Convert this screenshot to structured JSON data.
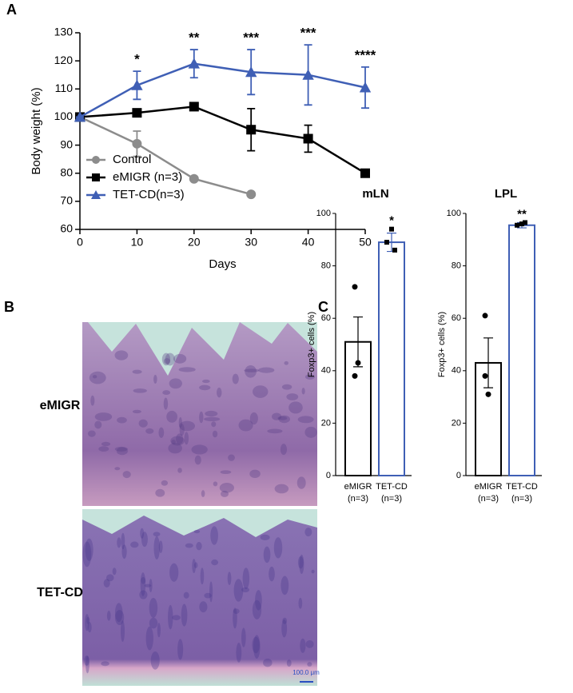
{
  "panel_labels": [
    "A",
    "B",
    "C"
  ],
  "histology": {
    "rows": [
      "eMIGR",
      "TET-CD"
    ],
    "scale_bar": "100.0 μm"
  },
  "chart_data": [
    {
      "type": "line",
      "xlabel": "Days",
      "ylabel": "Body weight (%)",
      "xlim": [
        0,
        50
      ],
      "xticks": [
        0,
        10,
        20,
        30,
        40,
        50
      ],
      "ylim": [
        60,
        130
      ],
      "yticks": [
        60,
        70,
        80,
        90,
        100,
        110,
        120,
        130
      ],
      "legend": "lower left",
      "series": [
        {
          "name": "Control",
          "color": "#8c8c8c",
          "marker": "circle",
          "x": [
            0,
            10,
            20,
            30
          ],
          "values": [
            100,
            90.5,
            78,
            72.5
          ],
          "errors": [
            0,
            4.5,
            0,
            0
          ]
        },
        {
          "name": "eMIGR  (n=3)",
          "color": "#000000",
          "marker": "square",
          "x": [
            0,
            10,
            20,
            30,
            40,
            50
          ],
          "values": [
            100,
            101.5,
            103.7,
            95.5,
            92.3,
            80
          ],
          "errors": [
            0,
            0,
            0,
            7.5,
            4.8,
            1.2
          ]
        },
        {
          "name": "TET-CD(n=3)",
          "color": "#3f5fb5",
          "marker": "triangle",
          "x": [
            0,
            10,
            20,
            30,
            40,
            50
          ],
          "values": [
            100,
            111.3,
            119,
            116,
            115,
            110.5
          ],
          "errors": [
            0,
            5,
            5,
            8,
            10.7,
            7.3
          ]
        }
      ],
      "annotations": [
        {
          "x": 10,
          "text": "*"
        },
        {
          "x": 20,
          "text": "**"
        },
        {
          "x": 30,
          "text": "***"
        },
        {
          "x": 40,
          "text": "***"
        },
        {
          "x": 50,
          "text": "****"
        }
      ]
    },
    {
      "type": "bar",
      "title": "mLN",
      "ylabel": "Foxp3+ cells (%)",
      "ylim": [
        0,
        100
      ],
      "yticks": [
        0,
        20,
        40,
        60,
        80,
        100
      ],
      "categories": [
        "eMIGR",
        "TET-CD"
      ],
      "category_notes": [
        "(n=3)",
        "(n=3)"
      ],
      "values": [
        51,
        89
      ],
      "errors": [
        9.5,
        3.5
      ],
      "points": [
        [
          72,
          38,
          43
        ],
        [
          94,
          86,
          89
        ]
      ],
      "colors": [
        "#000000",
        "#3f5fb5"
      ],
      "annotations": [
        {
          "x": "TET-CD",
          "text": "*"
        }
      ]
    },
    {
      "type": "bar",
      "title": "LPL",
      "ylabel": "Foxp3+ cells (%)",
      "ylim": [
        0,
        100
      ],
      "yticks": [
        0,
        20,
        40,
        60,
        80,
        100
      ],
      "categories": [
        "eMIGR",
        "TET-CD"
      ],
      "category_notes": [
        "(n=3)",
        "(n=3)"
      ],
      "values": [
        43,
        95.5
      ],
      "errors": [
        9.5,
        1
      ],
      "points": [
        [
          61,
          38,
          31
        ],
        [
          96,
          96.5,
          95.5
        ]
      ],
      "colors": [
        "#000000",
        "#3f5fb5"
      ],
      "annotations": [
        {
          "x": "TET-CD",
          "text": "**"
        }
      ]
    }
  ]
}
